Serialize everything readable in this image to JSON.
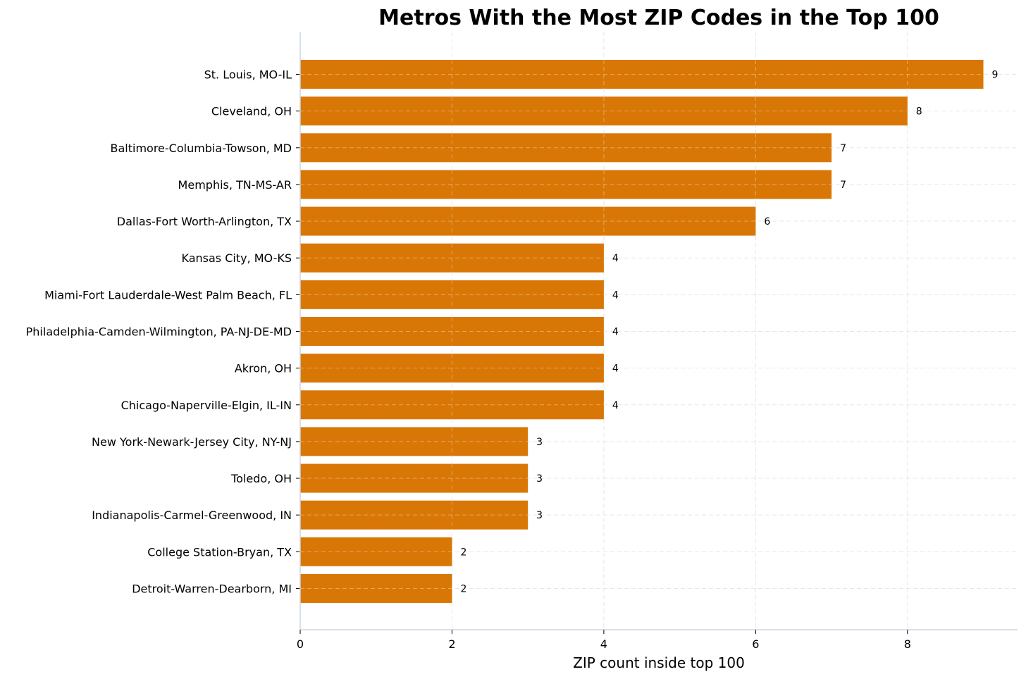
{
  "chart_data": {
    "type": "bar",
    "orientation": "horizontal",
    "title": "Metros With the Most ZIP Codes in the Top 100",
    "xlabel": "ZIP count inside top 100",
    "ylabel": "",
    "xlim": [
      0,
      9.45
    ],
    "xticks": [
      0,
      2,
      4,
      6,
      8
    ],
    "grid": true,
    "bar_color": "#D97706",
    "categories": [
      "St. Louis, MO-IL",
      "Cleveland, OH",
      "Baltimore-Columbia-Towson, MD",
      "Memphis, TN-MS-AR",
      "Dallas-Fort Worth-Arlington, TX",
      "Kansas City, MO-KS",
      "Miami-Fort Lauderdale-West Palm Beach, FL",
      "Philadelphia-Camden-Wilmington, PA-NJ-DE-MD",
      "Akron, OH",
      "Chicago-Naperville-Elgin, IL-IN",
      "New York-Newark-Jersey City, NY-NJ",
      "Toledo, OH",
      "Indianapolis-Carmel-Greenwood, IN",
      "College Station-Bryan, TX",
      "Detroit-Warren-Dearborn, MI"
    ],
    "values": [
      9,
      8,
      7,
      7,
      6,
      4,
      4,
      4,
      4,
      4,
      3,
      3,
      3,
      2,
      2
    ]
  }
}
